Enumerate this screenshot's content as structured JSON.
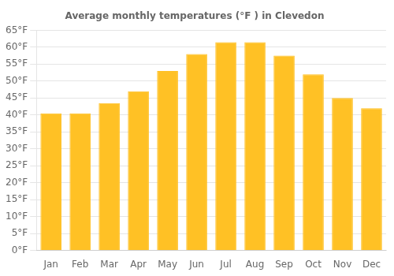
{
  "chart_data": {
    "type": "bar",
    "title": "Average monthly temperatures (°F ) in Clevedon",
    "categories": [
      "Jan",
      "Feb",
      "Mar",
      "Apr",
      "May",
      "Jun",
      "Jul",
      "Aug",
      "Sep",
      "Oct",
      "Nov",
      "Dec"
    ],
    "values": [
      40.5,
      40.5,
      43.5,
      47.0,
      53.0,
      58.0,
      61.5,
      61.5,
      57.5,
      52.0,
      45.0,
      42.0
    ],
    "color": "#FFC125",
    "ylim": [
      0,
      65
    ],
    "yticks": [
      {
        "value": 0,
        "label": "0°F"
      },
      {
        "value": 5,
        "label": "5°F"
      },
      {
        "value": 10,
        "label": "10°F"
      },
      {
        "value": 15,
        "label": "15°F"
      },
      {
        "value": 20,
        "label": "20°F"
      },
      {
        "value": 25,
        "label": "25°F"
      },
      {
        "value": 30,
        "label": "30°F"
      },
      {
        "value": 35,
        "label": "35°F"
      },
      {
        "value": 40,
        "label": "40°F"
      },
      {
        "value": 45,
        "label": "45°F"
      },
      {
        "value": 50,
        "label": "50°F"
      },
      {
        "value": 55,
        "label": "55°F"
      },
      {
        "value": 60,
        "label": "60°F"
      },
      {
        "value": 65,
        "label": "65°F"
      }
    ],
    "grid": true
  }
}
